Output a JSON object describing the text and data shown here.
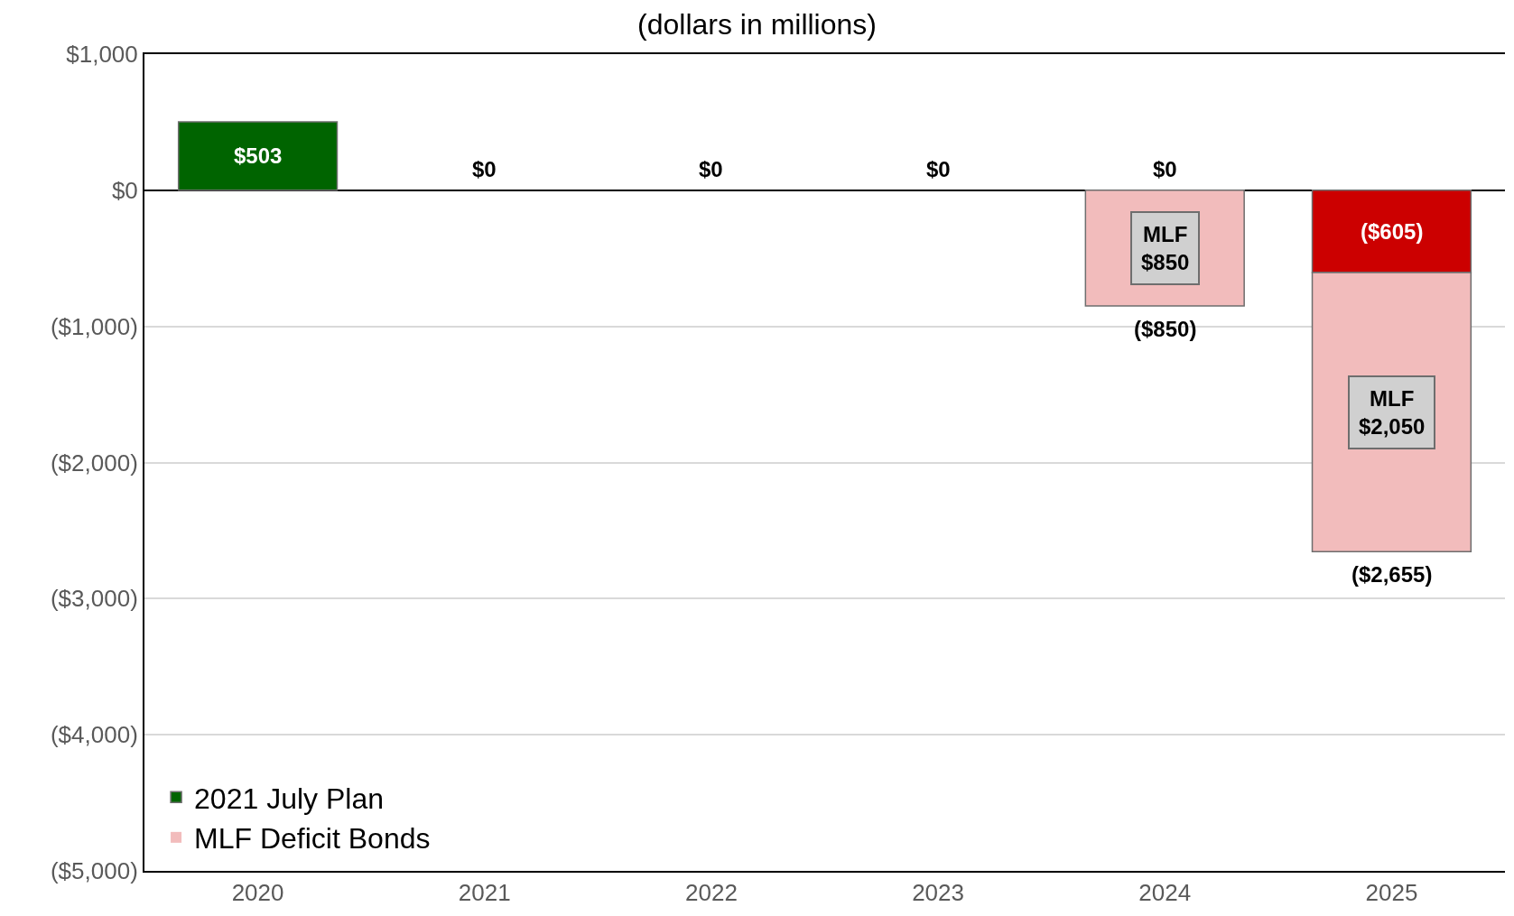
{
  "chart_data": {
    "type": "bar",
    "title": "(dollars in millions)",
    "categories": [
      "2020",
      "2021",
      "2022",
      "2023",
      "2024",
      "2025"
    ],
    "stacked": true,
    "series": [
      {
        "name": "2021 July Plan",
        "colors": [
          "#006400",
          "#006400",
          "#006400",
          "#006400",
          "#006400",
          "#cc0000"
        ],
        "values": [
          503,
          0,
          0,
          0,
          0,
          -605
        ],
        "value_labels": [
          "$503",
          "$0",
          "$0",
          "$0",
          "$0",
          "($605)"
        ]
      },
      {
        "name": "MLF Deficit Bonds",
        "color": "#f2bcbc",
        "values": [
          null,
          null,
          null,
          null,
          -850,
          -2050
        ],
        "value_labels": [
          null,
          null,
          null,
          null,
          "MLF\n$850",
          "MLF\n$2,050"
        ]
      }
    ],
    "totals": [
      null,
      null,
      null,
      null,
      "($850)",
      "($2,655)"
    ],
    "ylim": [
      -5000,
      1000
    ],
    "yticks": [
      {
        "value": 1000,
        "label": "$1,000"
      },
      {
        "value": 0,
        "label": "$0"
      },
      {
        "value": -1000,
        "label": "($1,000)"
      },
      {
        "value": -2000,
        "label": "($2,000)"
      },
      {
        "value": -3000,
        "label": "($3,000)"
      },
      {
        "value": -4000,
        "label": "($4,000)"
      },
      {
        "value": -5000,
        "label": "($5,000)"
      }
    ],
    "grid": "y",
    "legend": "bottom left"
  }
}
